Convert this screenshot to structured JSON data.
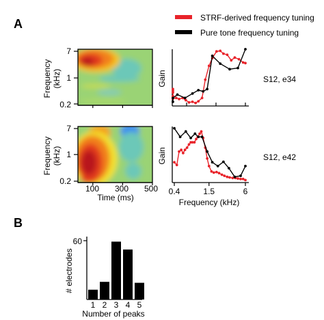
{
  "panels": {
    "a": "A",
    "b": "B"
  },
  "legend": {
    "strf": "STRF-derived frequency tuning",
    "pure": "Pure tone frequency tuning",
    "strf_color": "#e8232a",
    "pure_color": "#000000"
  },
  "chart_data": [
    {
      "type": "heatmap",
      "name": "S12, e34 STRF",
      "ylabel": "Frequency\n(kHz)",
      "yticks": [
        "7",
        "1",
        "0.2"
      ],
      "x_ticks_values": [
        100,
        300,
        500
      ],
      "xlim": [
        0,
        500
      ],
      "colormap": "jet",
      "hotspots": [
        {
          "time_ms": 100,
          "freq_khz": 4.5,
          "level": "max"
        }
      ]
    },
    {
      "type": "line",
      "name": "S12, e34 tuning",
      "label": "S12, e34",
      "ylabel": "Gain",
      "xlim_khz": [
        0.4,
        6
      ],
      "series": [
        {
          "name": "STRF-derived frequency tuning",
          "color": "#e8232a",
          "x": [
            0.2,
            0.22,
            0.25,
            0.28,
            0.3,
            0.34,
            0.38,
            0.43,
            0.48,
            0.55,
            0.62,
            0.7,
            0.8,
            0.9,
            1.0,
            1.15,
            1.3,
            1.5,
            1.7,
            2.0,
            2.3,
            2.6,
            3.0,
            3.5,
            4.0,
            4.7,
            5.5,
            6.0
          ],
          "y": [
            0.25,
            0.28,
            0.22,
            0.15,
            0.12,
            0.13,
            0.11,
            0.12,
            0.1,
            0.12,
            0.08,
            0.04,
            0.05,
            0.03,
            0.06,
            0.12,
            0.45,
            0.7,
            0.84,
            0.96,
            0.97,
            0.92,
            0.9,
            0.8,
            0.85,
            0.82,
            0.76,
            0.75
          ]
        },
        {
          "name": "Pure tone frequency tuning",
          "color": "#000000",
          "x": [
            0.2,
            0.3,
            0.45,
            0.6,
            0.8,
            1.0,
            1.2,
            1.4,
            1.7,
            2.3,
            3.3,
            4.5,
            6.0
          ],
          "y": [
            0.05,
            0.12,
            0.18,
            0.12,
            0.2,
            0.26,
            0.24,
            0.28,
            0.88,
            0.74,
            0.64,
            0.66,
            1.0
          ]
        }
      ]
    },
    {
      "type": "heatmap",
      "name": "S12, e42 STRF",
      "xlabel": "Time (ms)",
      "ylabel": "Frequency\n(kHz)",
      "yticks": [
        "7",
        "1",
        "0.2"
      ],
      "xticks": [
        "100",
        "300",
        "500"
      ],
      "x_ticks_values": [
        100,
        300,
        500
      ],
      "xlim": [
        0,
        500
      ],
      "colormap": "jet",
      "hotspots": [
        {
          "time_ms": 100,
          "freq_khz": 0.8,
          "level": "max"
        },
        {
          "time_ms": 300,
          "freq_khz": 5.0,
          "level": "min"
        }
      ]
    },
    {
      "type": "line",
      "name": "S12, e42 tuning",
      "label": "S12, e42",
      "xlabel": "Frequency (kHz)",
      "ylabel": "Gain",
      "xticks": [
        "0.4",
        "1.5",
        "6"
      ],
      "x_ticks_values": [
        0.4,
        1.5,
        6
      ],
      "xlim_khz": [
        0.4,
        6
      ],
      "series": [
        {
          "name": "STRF-derived frequency tuning",
          "color": "#e8232a",
          "x": [
            0.4,
            0.44,
            0.48,
            0.52,
            0.56,
            0.6,
            0.65,
            0.7,
            0.75,
            0.8,
            0.86,
            0.92,
            0.98,
            1.05,
            1.12,
            1.2,
            1.3,
            1.4,
            1.5,
            1.65,
            1.8,
            2.0,
            2.2,
            2.45,
            2.7,
            3.0,
            3.3,
            3.7,
            4.1,
            4.5,
            5.0,
            5.5,
            6.0
          ],
          "y": [
            0.35,
            0.3,
            0.55,
            0.58,
            0.52,
            0.58,
            0.62,
            0.68,
            0.72,
            0.72,
            0.72,
            0.78,
            0.82,
            0.88,
            0.92,
            0.8,
            0.62,
            0.42,
            0.28,
            0.18,
            0.16,
            0.17,
            0.15,
            0.12,
            0.1,
            0.08,
            0.07,
            0.06,
            0.06,
            0.05,
            0.04,
            0.04,
            0.02
          ]
        },
        {
          "name": "Pure tone frequency tuning",
          "color": "#000000",
          "x": [
            0.4,
            0.5,
            0.62,
            0.75,
            0.88,
            1.0,
            1.15,
            1.4,
            1.7,
            2.1,
            2.6,
            3.2,
            4.0,
            5.0,
            6.0
          ],
          "y": [
            0.98,
            0.82,
            0.92,
            0.8,
            0.88,
            0.82,
            0.82,
            0.55,
            0.35,
            0.28,
            0.36,
            0.24,
            0.08,
            0.1,
            0.28
          ]
        }
      ]
    },
    {
      "type": "bar",
      "name": "Number of peaks histogram",
      "xlabel": "Number of peaks",
      "ylabel": "# electrodes",
      "categories": [
        "1",
        "2",
        "3",
        "4",
        "5"
      ],
      "values": [
        10,
        18,
        59,
        51,
        17
      ],
      "yticks": [
        "60"
      ],
      "ylim": [
        0,
        62
      ]
    }
  ]
}
